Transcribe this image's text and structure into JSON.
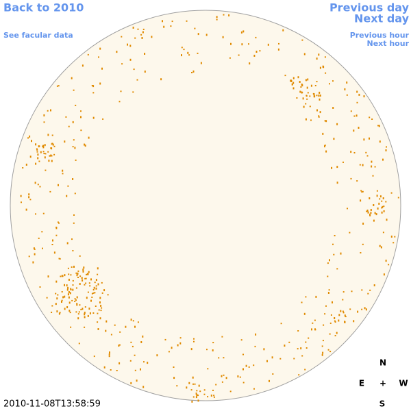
{
  "links": {
    "back": "Back to 2010",
    "facular": "See facular data",
    "previous_day": "Previous day",
    "next_day": "Next day",
    "previous_hour": "Previous hour",
    "next_hour": "Next hour"
  },
  "timestamp": "2010-11-08T13:58:59",
  "compass": {
    "north": "N",
    "east": "E",
    "center": "+",
    "west": "W",
    "south": "S"
  }
}
